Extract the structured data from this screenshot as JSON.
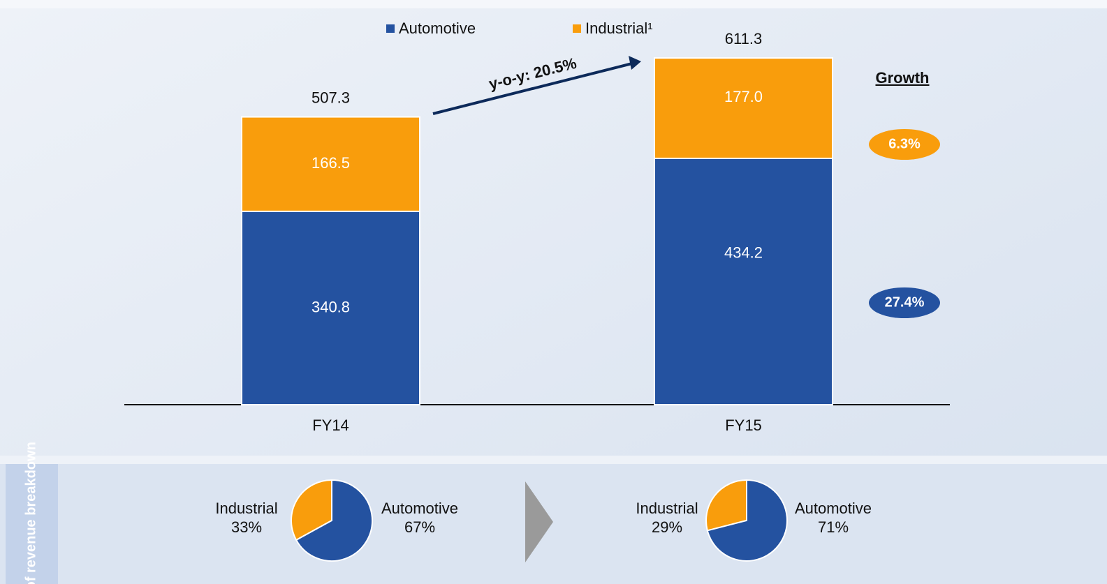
{
  "chart_data": [
    {
      "type": "bar",
      "stacked": true,
      "categories": [
        "FY14",
        "FY15"
      ],
      "series": [
        {
          "name": "Automotive",
          "color": "#2452a0",
          "values": [
            340.8,
            434.2
          ],
          "growth": 27.4,
          "growth_label": "27.4%"
        },
        {
          "name": "Industrial¹",
          "color": "#f99d0c",
          "values": [
            166.5,
            177.0
          ],
          "value_labels": [
            "166.5",
            "177.0"
          ],
          "growth": 6.3,
          "growth_label": "6.3%"
        }
      ],
      "totals": [
        507.3,
        611.3
      ],
      "annotation": "y-o-y: 20.5%",
      "growth_title": "Growth"
    },
    {
      "type": "pie",
      "categories": [
        "Industrial",
        "Automotive"
      ],
      "values": [
        33,
        67
      ],
      "value_labels": [
        "33%",
        "67%"
      ],
      "colors": [
        "#f99d0c",
        "#2452a0"
      ]
    },
    {
      "type": "pie",
      "categories": [
        "Industrial",
        "Automotive"
      ],
      "values": [
        29,
        71
      ],
      "value_labels": [
        "29%",
        "71%"
      ],
      "colors": [
        "#f99d0c",
        "#2452a0"
      ]
    }
  ],
  "side_label": "% of revenue breakdown"
}
